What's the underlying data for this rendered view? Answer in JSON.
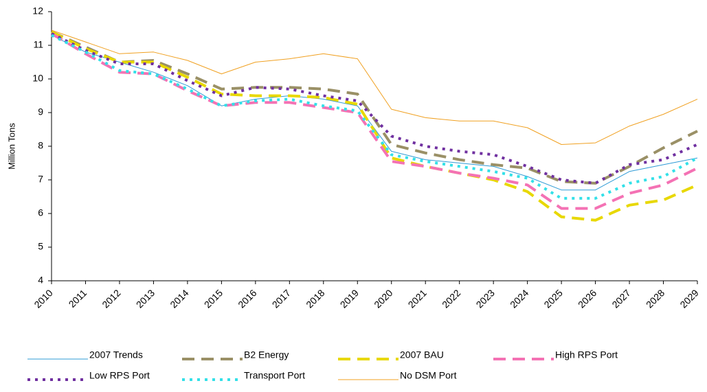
{
  "chart_data": {
    "type": "line",
    "y_label": "Million Tons",
    "categories": [
      "2010",
      "2011",
      "2012",
      "2013",
      "2014",
      "2015",
      "2016",
      "2017",
      "2018",
      "2019",
      "2020",
      "2021",
      "2022",
      "2023",
      "2024",
      "2025",
      "2026",
      "2027",
      "2028",
      "2029"
    ],
    "ylim": [
      4,
      12
    ],
    "yticks": [
      4,
      5,
      6,
      7,
      8,
      9,
      10,
      11,
      12
    ],
    "grid": false,
    "legend": "bottom",
    "series": [
      {
        "name": "2007 Trends",
        "color": "#2e9bd6",
        "line_style": "solid",
        "values": [
          11.3,
          10.8,
          10.5,
          10.2,
          9.8,
          9.2,
          9.4,
          9.5,
          9.4,
          9.2,
          7.85,
          7.6,
          7.5,
          7.4,
          7.1,
          6.7,
          6.7,
          7.25,
          7.45,
          7.65
        ]
      },
      {
        "name": "B2 Energy",
        "color": "#9a9066",
        "line_style": "dashed",
        "values": [
          11.4,
          10.95,
          10.5,
          10.55,
          10.15,
          9.7,
          9.75,
          9.75,
          9.7,
          9.55,
          8.05,
          7.8,
          7.6,
          7.45,
          7.35,
          6.95,
          6.9,
          7.4,
          7.95,
          8.45
        ]
      },
      {
        "name": "2007 BAU",
        "color": "#e8d800",
        "line_style": "dashed",
        "values": [
          11.4,
          10.9,
          10.5,
          10.5,
          10.05,
          9.55,
          9.5,
          9.5,
          9.45,
          9.25,
          7.65,
          7.4,
          7.2,
          7.0,
          6.65,
          5.9,
          5.8,
          6.25,
          6.4,
          6.85
        ]
      },
      {
        "name": "High RPS Port",
        "color": "#f472b4",
        "line_style": "dashed",
        "values": [
          11.35,
          10.75,
          10.2,
          10.15,
          9.65,
          9.2,
          9.3,
          9.3,
          9.15,
          9.0,
          7.55,
          7.4,
          7.2,
          7.05,
          6.85,
          6.15,
          6.15,
          6.6,
          6.85,
          7.35
        ]
      },
      {
        "name": "Low RPS Port",
        "color": "#7030a0",
        "line_style": "dotted",
        "values": [
          11.35,
          10.85,
          10.45,
          10.45,
          9.95,
          9.5,
          9.75,
          9.7,
          9.5,
          9.35,
          8.3,
          8.0,
          7.85,
          7.75,
          7.4,
          7.0,
          6.9,
          7.45,
          7.6,
          8.05
        ]
      },
      {
        "name": "Transport Port",
        "color": "#33e0e8",
        "line_style": "dotted",
        "values": [
          11.3,
          10.8,
          10.25,
          10.15,
          9.7,
          9.2,
          9.35,
          9.4,
          9.2,
          9.05,
          7.75,
          7.55,
          7.4,
          7.25,
          7.05,
          6.45,
          6.45,
          6.9,
          7.1,
          7.65
        ]
      },
      {
        "name": "No DSM Port",
        "color": "#f0a020",
        "line_style": "solid",
        "values": [
          11.45,
          11.1,
          10.75,
          10.8,
          10.55,
          10.15,
          10.5,
          10.6,
          10.75,
          10.6,
          9.1,
          8.85,
          8.75,
          8.75,
          8.55,
          8.05,
          8.1,
          8.6,
          8.95,
          9.4
        ]
      }
    ]
  }
}
